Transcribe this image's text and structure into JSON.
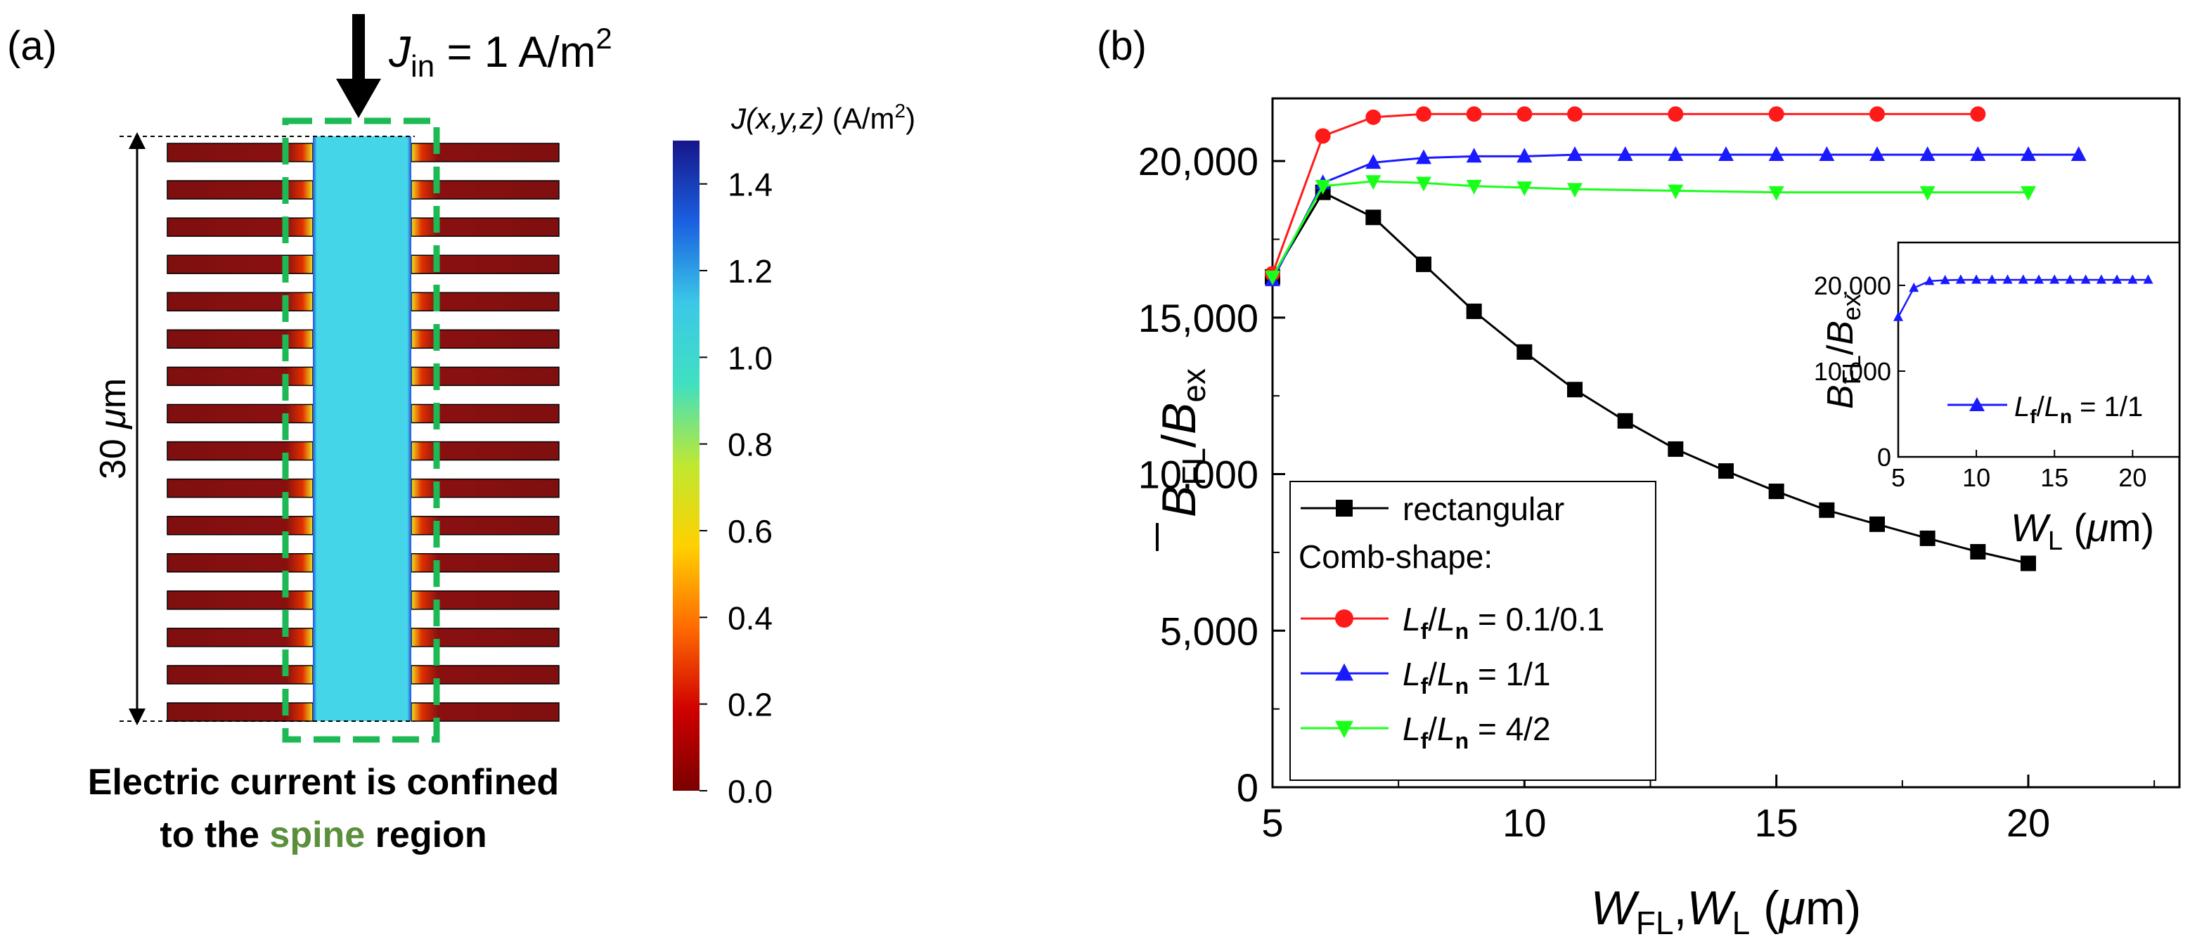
{
  "panel_a": {
    "label": "(a)",
    "input_current": {
      "symbol": "J",
      "subscript": "in",
      "value_text": " = 1 A/m",
      "superscript": "2"
    },
    "length_label": {
      "value": "30 ",
      "unit_symbol": "μ",
      "unit_rest": "m"
    },
    "caption": {
      "line1": "Electric current is confined",
      "line2_prefix": "to the ",
      "line2_highlight": "spine",
      "line2_suffix": " region"
    },
    "highlight_color": "#5a8f3c",
    "colorbar": {
      "title_prefix": "J",
      "title_args": "(x,y,z)",
      "title_unit": " (A/m",
      "title_sup": "2",
      "title_close": ")",
      "ticks": [
        "0.0",
        "0.2",
        "0.4",
        "0.6",
        "0.8",
        "1.0",
        "1.2",
        "1.4"
      ],
      "stops": [
        "#7a0000",
        "#d00000",
        "#ff6a00",
        "#ffd000",
        "#c0e830",
        "#40e0c0",
        "#3bc8e8",
        "#1a60e0",
        "#16168a"
      ]
    },
    "field_colors": {
      "spine": "#45d5e8",
      "finger": "#7f0f0f",
      "dashed_box": "#1db954"
    }
  },
  "panel_b": {
    "label": "(b)",
    "chart_data": {
      "type": "line",
      "xlabel": {
        "w1": "W",
        "w1sub": "FL",
        "sep": ",",
        "w2": "W",
        "w2sub": "L",
        "unit_open": " (",
        "unit_mu": "μ",
        "unit_rest": "m)"
      },
      "ylabel": {
        "b": "B",
        "bsub": "FL",
        "slash": "/",
        "b2": "B",
        "b2sub": "ex"
      },
      "xlim": [
        5,
        23
      ],
      "ylim": [
        0,
        22000
      ],
      "x_ticks": [
        5,
        10,
        15,
        20
      ],
      "y_ticks": [
        0,
        5000,
        10000,
        15000,
        20000
      ],
      "y_tick_labels": [
        "0",
        "5,000",
        "10,000",
        "15,000",
        "20,000"
      ],
      "x_tick_labels": [
        "5",
        "10",
        "15",
        "20"
      ],
      "legend_position": "bottom-left",
      "legend_heading": "Comb-shape:",
      "series": [
        {
          "name": "rectangular",
          "color": "#000000",
          "marker": "square",
          "x": [
            5,
            6,
            7,
            8,
            9,
            10,
            11,
            12,
            13,
            14,
            15,
            16,
            17,
            18,
            19,
            20
          ],
          "y": [
            16300,
            19000,
            18200,
            16700,
            15200,
            13900,
            12700,
            11700,
            10800,
            10100,
            9450,
            8850,
            8400,
            7950,
            7520,
            7150
          ]
        },
        {
          "name": "0.1/0.1",
          "color": "#ff1a1a",
          "marker": "circle",
          "x": [
            5,
            6,
            7,
            8,
            9,
            10,
            11,
            13,
            15,
            17,
            19
          ],
          "y": [
            16400,
            20800,
            21400,
            21500,
            21500,
            21500,
            21500,
            21500,
            21500,
            21500,
            21500
          ]
        },
        {
          "name": "1/1",
          "color": "#1a1aff",
          "marker": "triangle-up",
          "x": [
            5,
            6,
            7,
            8,
            9,
            10,
            11,
            12,
            13,
            14,
            15,
            16,
            17,
            18,
            19,
            20,
            21
          ],
          "y": [
            16200,
            19300,
            19950,
            20100,
            20150,
            20150,
            20200,
            20200,
            20200,
            20200,
            20200,
            20200,
            20200,
            20200,
            20200,
            20200,
            20200
          ]
        },
        {
          "name": "4/2",
          "color": "#1aff1a",
          "marker": "triangle-down",
          "x": [
            5,
            6,
            7,
            8,
            9,
            10,
            11,
            13,
            15,
            18,
            20
          ],
          "y": [
            16300,
            19200,
            19350,
            19300,
            19200,
            19150,
            19100,
            19050,
            19000,
            19000,
            19000
          ]
        }
      ],
      "legend_ratio": {
        "lf": "L",
        "lfsub": "f",
        "slash": "/",
        "ln": "L",
        "lnsub": "n",
        "eq": " = "
      },
      "inset": {
        "type": "line",
        "xlabel": {
          "w": "W",
          "wsub": "L",
          "unit_open": " (",
          "unit_mu": "μ",
          "unit_rest": "m)"
        },
        "ylabel": {
          "b": "B",
          "bsub": "FL",
          "slash": "/",
          "b2": "B",
          "b2sub": "ex"
        },
        "xlim": [
          5,
          23
        ],
        "ylim": [
          0,
          25000
        ],
        "x_ticks": [
          5,
          10,
          15,
          20
        ],
        "x_tick_labels": [
          "5",
          "10",
          "15",
          "20"
        ],
        "y_ticks": [
          0,
          10000,
          20000
        ],
        "y_tick_labels": [
          "0",
          "10,000",
          "20,000"
        ],
        "series": [
          {
            "name": "1/1",
            "color": "#1a1aff",
            "marker": "triangle-up",
            "x": [
              5,
              6,
              7,
              8,
              9,
              10,
              11,
              12,
              13,
              14,
              15,
              16,
              17,
              18,
              19,
              20,
              21
            ],
            "y": [
              16300,
              19700,
              20500,
              20600,
              20650,
              20650,
              20650,
              20650,
              20650,
              20650,
              20650,
              20650,
              20650,
              20650,
              20650,
              20650,
              20650
            ]
          }
        ]
      }
    }
  }
}
